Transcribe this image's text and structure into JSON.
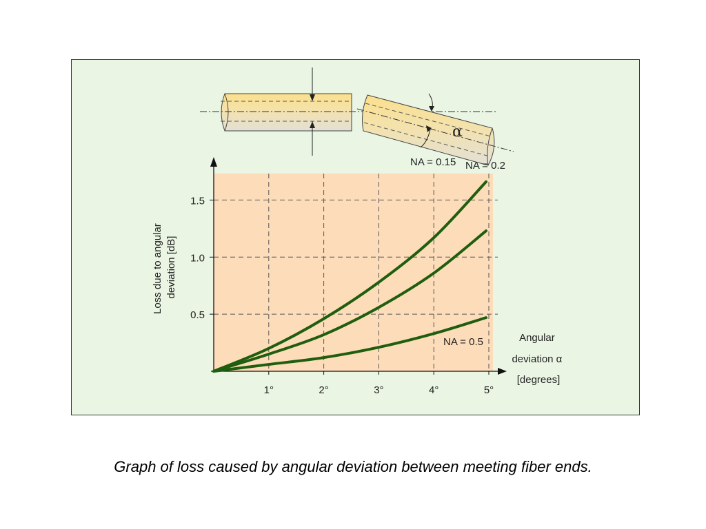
{
  "caption": "Graph of loss caused by angular deviation between meeting fiber ends.",
  "colors": {
    "panel_bg": "#eaf5e4",
    "plot_bg": "#fddcb9",
    "curve": "#1e5e0e",
    "fiber_top": "#fbe08c",
    "fiber_bottom": "#e4e2d6"
  },
  "diagram": {
    "alpha_label": "α"
  },
  "chart_data": {
    "type": "line",
    "ylabel_lines": [
      "Loss due to angular",
      "deviation [dB]"
    ],
    "xlabel_lines": [
      "Angular",
      "deviation α",
      "[degrees]"
    ],
    "xlim": [
      0,
      5
    ],
    "ylim": [
      0,
      1.75
    ],
    "x_ticks": [
      1,
      2,
      3,
      4,
      5
    ],
    "x_tick_labels": [
      "1°",
      "2°",
      "3°",
      "4°",
      "5°"
    ],
    "y_ticks": [
      0.5,
      1.0,
      1.5
    ],
    "y_tick_labels": [
      "0.5",
      "1.0",
      "1.5"
    ],
    "grid": true,
    "series": [
      {
        "name": "NA = 0.15",
        "x": [
          0,
          1,
          2,
          3,
          4,
          4.95
        ],
        "y": [
          0,
          0.2,
          0.46,
          0.78,
          1.17,
          1.66
        ]
      },
      {
        "name": "NA = 0.2",
        "x": [
          0,
          1,
          2,
          3,
          4,
          4.95
        ],
        "y": [
          0,
          0.15,
          0.32,
          0.56,
          0.86,
          1.23
        ]
      },
      {
        "name": "NA = 0.5",
        "x": [
          0,
          1,
          2,
          3,
          4,
          4.95
        ],
        "y": [
          0,
          0.06,
          0.12,
          0.21,
          0.33,
          0.47
        ]
      }
    ]
  }
}
